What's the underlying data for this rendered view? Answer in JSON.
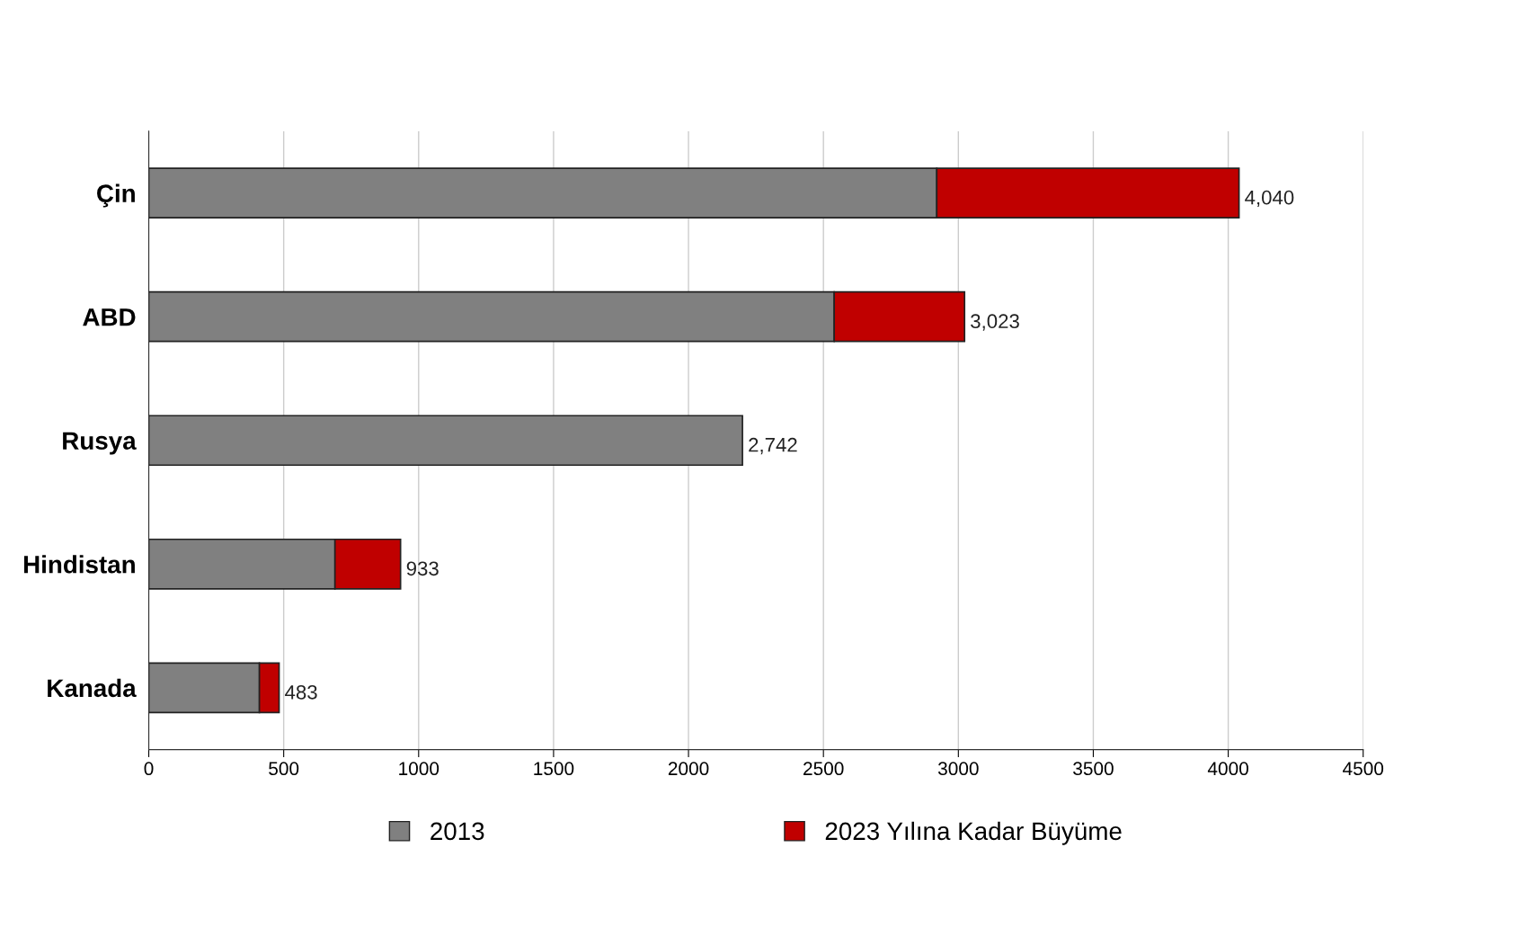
{
  "chart_data": {
    "type": "bar",
    "orientation": "horizontal",
    "stacked": true,
    "categories": [
      "Çin",
      "ABD",
      "Rusya",
      "Hindistan",
      "Kanada"
    ],
    "series": [
      {
        "name": "2013",
        "color": "#808080",
        "values": [
          2920,
          2540,
          2200,
          690,
          410
        ]
      },
      {
        "name": "2023 Yılına Kadar Büyüme",
        "color": "#c00000",
        "values": [
          1120,
          483,
          null,
          243,
          73
        ]
      }
    ],
    "annotations": [
      {
        "text": "4,040",
        "x": 4040,
        "y": "Çin"
      },
      {
        "text": "3,023",
        "x": 3023,
        "y": "ABD"
      },
      {
        "text": "2,742",
        "x": 2200,
        "y": "Rusya"
      },
      {
        "text": "933",
        "x": 933,
        "y": "Hindistan"
      },
      {
        "text": "483",
        "x": 483,
        "y": "Kanada"
      }
    ],
    "xlim": [
      0,
      4500
    ],
    "xticks": [
      0,
      500,
      1000,
      1500,
      2000,
      2500,
      3000,
      3500,
      4000,
      4500
    ],
    "grid": "x",
    "legend": "bottom"
  }
}
